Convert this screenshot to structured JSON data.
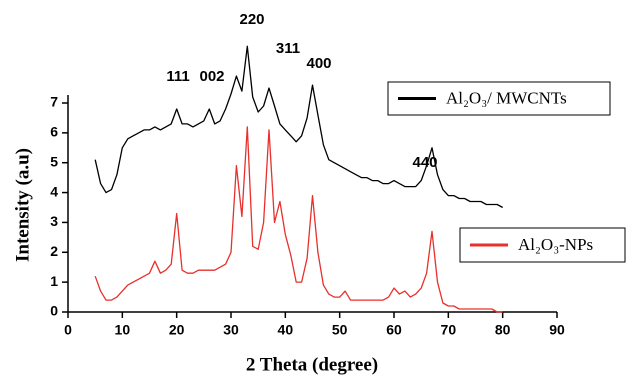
{
  "chart_data": {
    "type": "line",
    "x_label": "2 Theta (degree)",
    "y_label": "Intensity (a.u)",
    "annotations": [
      "111",
      "002",
      "220",
      "311",
      "400",
      "440"
    ],
    "x": [
      5,
      6,
      7,
      8,
      9,
      10,
      11,
      12,
      13,
      14,
      15,
      16,
      17,
      18,
      19,
      20,
      21,
      22,
      23,
      24,
      25,
      26,
      27,
      28,
      29,
      30,
      31,
      32,
      33,
      34,
      35,
      36,
      37,
      38,
      39,
      40,
      41,
      42,
      43,
      44,
      45,
      46,
      47,
      48,
      49,
      50,
      51,
      52,
      53,
      54,
      55,
      56,
      57,
      58,
      59,
      60,
      61,
      62,
      63,
      64,
      65,
      66,
      67,
      68,
      69,
      70,
      71,
      72,
      73,
      74,
      75,
      76,
      77,
      78,
      79,
      80
    ],
    "series": [
      {
        "name": "Al₂O₃/ MWCNTs",
        "color": "#000000",
        "values": [
          5.1,
          4.3,
          4.0,
          4.1,
          4.6,
          5.5,
          5.8,
          5.9,
          6.0,
          6.1,
          6.1,
          6.2,
          6.1,
          6.2,
          6.3,
          6.8,
          6.3,
          6.3,
          6.2,
          6.3,
          6.4,
          6.8,
          6.3,
          6.4,
          6.8,
          7.3,
          7.9,
          7.4,
          8.9,
          7.2,
          6.7,
          6.9,
          7.5,
          6.9,
          6.3,
          6.1,
          5.9,
          5.7,
          5.9,
          6.5,
          7.6,
          6.6,
          5.6,
          5.1,
          5.0,
          4.9,
          4.8,
          4.7,
          4.6,
          4.5,
          4.5,
          4.4,
          4.4,
          4.3,
          4.3,
          4.4,
          4.3,
          4.2,
          4.2,
          4.2,
          4.4,
          4.9,
          5.5,
          4.6,
          4.1,
          3.9,
          3.9,
          3.8,
          3.8,
          3.7,
          3.7,
          3.7,
          3.6,
          3.6,
          3.6,
          3.5
        ]
      },
      {
        "name": "Al₂O₃-NPs",
        "color": "#e8302c",
        "values": [
          1.2,
          0.7,
          0.4,
          0.4,
          0.5,
          0.7,
          0.9,
          1.0,
          1.1,
          1.2,
          1.3,
          1.7,
          1.3,
          1.4,
          1.6,
          3.3,
          1.4,
          1.3,
          1.3,
          1.4,
          1.4,
          1.4,
          1.4,
          1.5,
          1.6,
          2.0,
          4.9,
          3.2,
          6.2,
          2.2,
          2.1,
          3.0,
          6.1,
          3.0,
          3.7,
          2.6,
          1.9,
          1.0,
          1.0,
          1.8,
          3.9,
          2.0,
          0.9,
          0.6,
          0.5,
          0.5,
          0.7,
          0.4,
          0.4,
          0.4,
          0.4,
          0.4,
          0.4,
          0.4,
          0.5,
          0.8,
          0.6,
          0.7,
          0.5,
          0.6,
          0.8,
          1.3,
          2.7,
          1.0,
          0.3,
          0.2,
          0.2,
          0.1,
          0.1,
          0.1,
          0.1,
          0.1,
          0.1,
          0.1,
          0.0,
          0.0
        ]
      }
    ],
    "xlim": [
      0,
      90
    ],
    "ylim": [
      0,
      7
    ],
    "xticks": [
      0,
      10,
      20,
      30,
      40,
      50,
      60,
      70,
      80,
      90
    ],
    "yticks": [
      0,
      1,
      2,
      3,
      4,
      5,
      6,
      7
    ],
    "grid": false
  }
}
